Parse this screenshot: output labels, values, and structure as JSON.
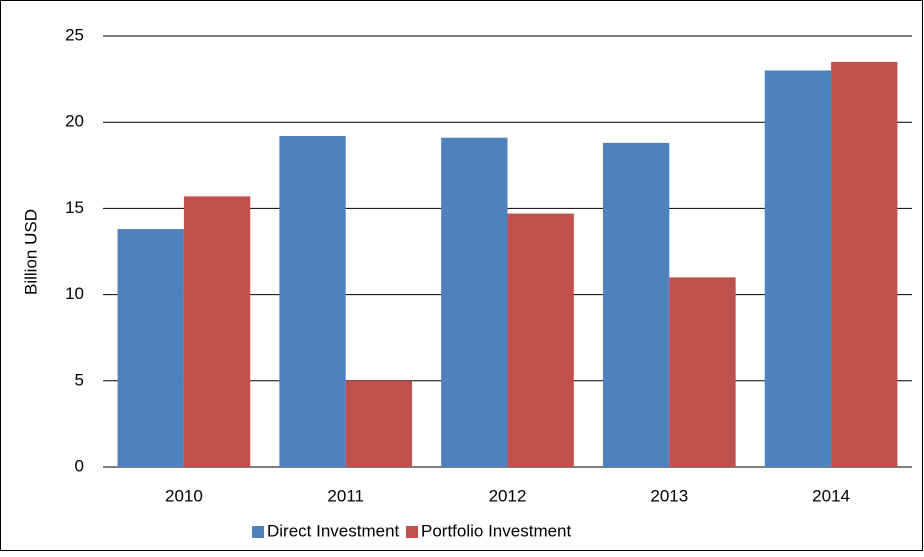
{
  "chart_data": {
    "type": "bar",
    "y_label": "Billion USD",
    "categories": [
      "2010",
      "2011",
      "2012",
      "2013",
      "2014"
    ],
    "series": [
      {
        "name": "Direct Investment",
        "color": "#4f81bd",
        "values": [
          13.8,
          19.2,
          19.1,
          18.8,
          23.0
        ]
      },
      {
        "name": "Portfolio Investment",
        "color": "#c0504d",
        "values": [
          15.7,
          5.0,
          14.7,
          11.0,
          23.5
        ]
      }
    ],
    "ylim": [
      0,
      25
    ],
    "yticks": [
      0,
      5,
      10,
      15,
      20,
      25
    ],
    "grid": true,
    "legend": "bottom"
  }
}
